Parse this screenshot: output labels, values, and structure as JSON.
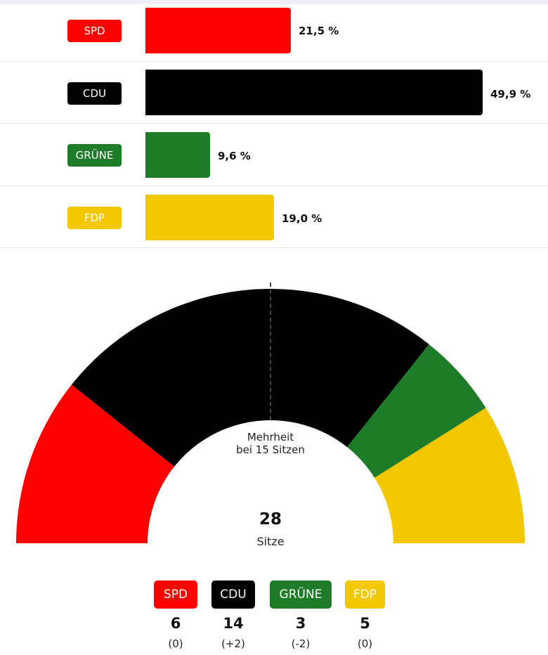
{
  "chart_data": [
    {
      "type": "bar",
      "orientation": "horizontal",
      "unit": "%",
      "xlim": [
        0,
        50
      ],
      "categories": [
        "SPD",
        "CDU",
        "GRÜNE",
        "FDP"
      ],
      "values": [
        21.5,
        49.9,
        9.6,
        19.0
      ],
      "labels": [
        "21,5 %",
        "49,9 %",
        "9,6 %",
        "19,0 %"
      ],
      "colors": [
        "#ff0000",
        "#000000",
        "#1e7b28",
        "#f2c700"
      ]
    },
    {
      "type": "parliament",
      "total_seats": "28",
      "total_label": "Sitze",
      "majority_line1": "Mehrheit",
      "majority_line2": "bei 15 Sitzen",
      "parties": [
        {
          "name": "SPD",
          "seats": 6,
          "seats_label": "6",
          "change": "(0)",
          "color": "#ff0000"
        },
        {
          "name": "CDU",
          "seats": 14,
          "seats_label": "14",
          "change": "(+2)",
          "color": "#000000"
        },
        {
          "name": "GRÜNE",
          "seats": 3,
          "seats_label": "3",
          "change": "(-2)",
          "color": "#1e7b28"
        },
        {
          "name": "FDP",
          "seats": 5,
          "seats_label": "5",
          "change": "(0)",
          "color": "#f2c700"
        }
      ]
    }
  ]
}
